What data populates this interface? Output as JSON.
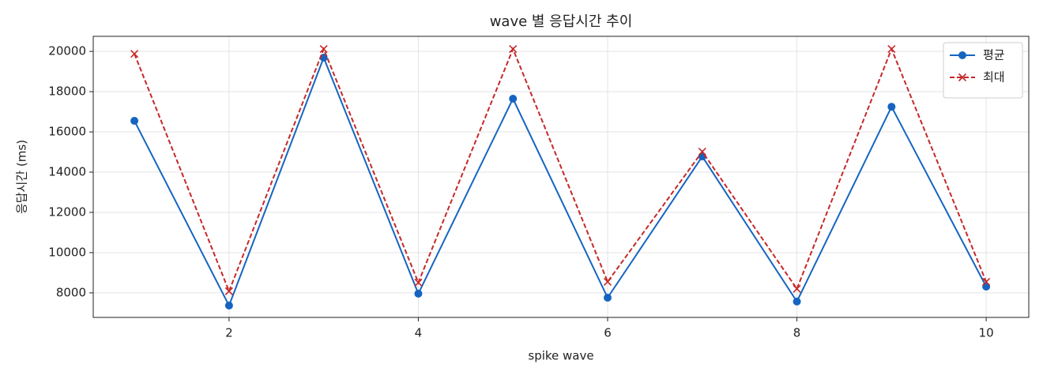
{
  "chart_data": {
    "type": "line",
    "title": "wave 별 응답시간 추이",
    "x_label": "spike wave",
    "y_label": "응답시간 (ms)",
    "x": [
      1,
      2,
      3,
      4,
      5,
      6,
      7,
      8,
      9,
      10
    ],
    "series": [
      {
        "name": "평균",
        "color": "#1565c0",
        "marker": "o",
        "linestyle": "solid",
        "values": [
          16550,
          7370,
          19690,
          7960,
          17650,
          7760,
          14780,
          7570,
          17250,
          8310
        ]
      },
      {
        "name": "최대",
        "color": "#c62828",
        "marker": "x",
        "linestyle": "dashed",
        "values": [
          19880,
          8080,
          20120,
          8510,
          20120,
          8550,
          15020,
          8200,
          20120,
          8550
        ]
      }
    ],
    "xlim": [
      0.565,
      10.45
    ],
    "ylim": [
      6780,
      20750
    ],
    "xticks": [
      2,
      4,
      6,
      8,
      10
    ],
    "yticks": [
      8000,
      10000,
      12000,
      14000,
      16000,
      18000,
      20000
    ],
    "grid": true,
    "legend": "upper right"
  }
}
